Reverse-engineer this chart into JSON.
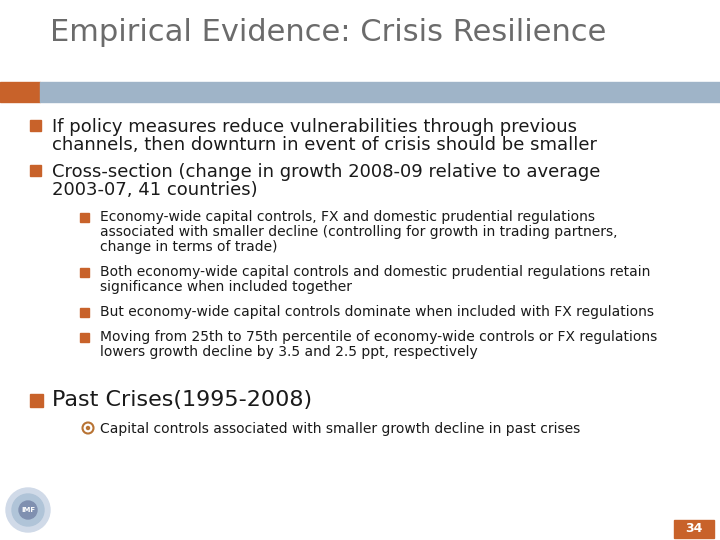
{
  "title": "Empirical Evidence: Crisis Resilience",
  "title_color": "#6b6b6b",
  "title_fontsize": 22,
  "bg_color": "#ffffff",
  "header_bar_color": "#9fb4c8",
  "header_bar_orange": "#c8622a",
  "bullet1_line1": "If policy measures reduce vulnerabilities through previous",
  "bullet1_line2": "channels, then downturn in event of crisis should be smaller",
  "bullet2_line1": "Cross-section (change in growth 2008-09 relative to average",
  "bullet2_line2": "2003-07, 41 countries)",
  "sub_bullets": [
    [
      "Economy-wide capital controls, FX and domestic prudential regulations",
      "associated with smaller decline (controlling for growth in trading partners,",
      "change in terms of trade)"
    ],
    [
      "Both economy-wide capital controls and domestic prudential regulations retain",
      "significance when included together"
    ],
    [
      "But economy-wide capital controls dominate when included with FX regulations"
    ],
    [
      "Moving from 25th to 75th percentile of economy-wide controls or FX regulations",
      "lowers growth decline by 3.5 and 2.5 ppt, respectively"
    ]
  ],
  "bullet3": "Past Crises(1995-2008)",
  "sub_bullet3": "Capital controls associated with smaller growth decline in past crises",
  "page_num": "34",
  "page_num_bg": "#c8622a",
  "page_num_color": "#ffffff",
  "bullet_sq_color": "#c8622a",
  "sub_sq_color": "#c8622a",
  "text_color": "#1a1a1a",
  "sub_text_color": "#1a1a1a",
  "font_size_main": 13,
  "font_size_sub": 10,
  "font_size_bullet3": 16
}
